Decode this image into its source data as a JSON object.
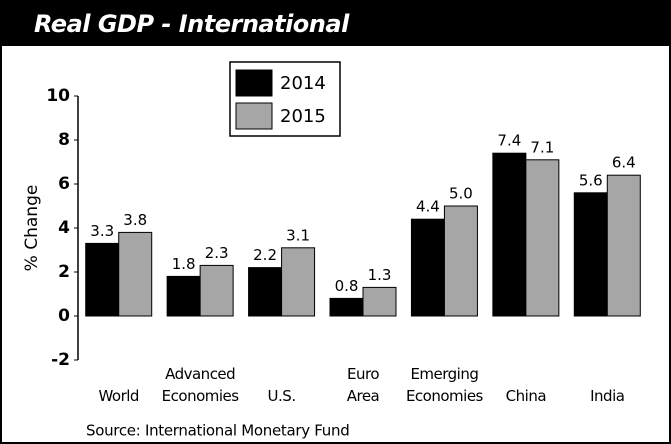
{
  "chart_data": {
    "type": "bar",
    "title": "Real GDP - International",
    "ylabel": "% Change",
    "source": "Source: International Monetary Fund",
    "categories": [
      [
        "World"
      ],
      [
        "Advanced",
        "Economies"
      ],
      [
        "U.S."
      ],
      [
        "Euro",
        "Area"
      ],
      [
        "Emerging",
        "Economies"
      ],
      [
        "China"
      ],
      [
        "India"
      ]
    ],
    "series": [
      {
        "name": "2014",
        "color": "#000000",
        "values": [
          3.3,
          1.8,
          2.2,
          0.8,
          4.4,
          7.4,
          5.6
        ],
        "value_labels": [
          "3.3",
          "1.8",
          "2.2",
          "0.8",
          "4.4",
          "7.4",
          "5.6"
        ]
      },
      {
        "name": "2015",
        "color": "#a6a6a6",
        "values": [
          3.8,
          2.3,
          3.1,
          1.3,
          5.0,
          7.1,
          6.4
        ],
        "value_labels": [
          "3.8",
          "2.3",
          "3.1",
          "1.3",
          "5.0",
          "7.1",
          "6.4"
        ]
      }
    ],
    "ylim": [
      -2,
      10
    ],
    "yticks": [
      -2,
      0,
      2,
      4,
      6,
      8,
      10
    ],
    "grid": false
  }
}
